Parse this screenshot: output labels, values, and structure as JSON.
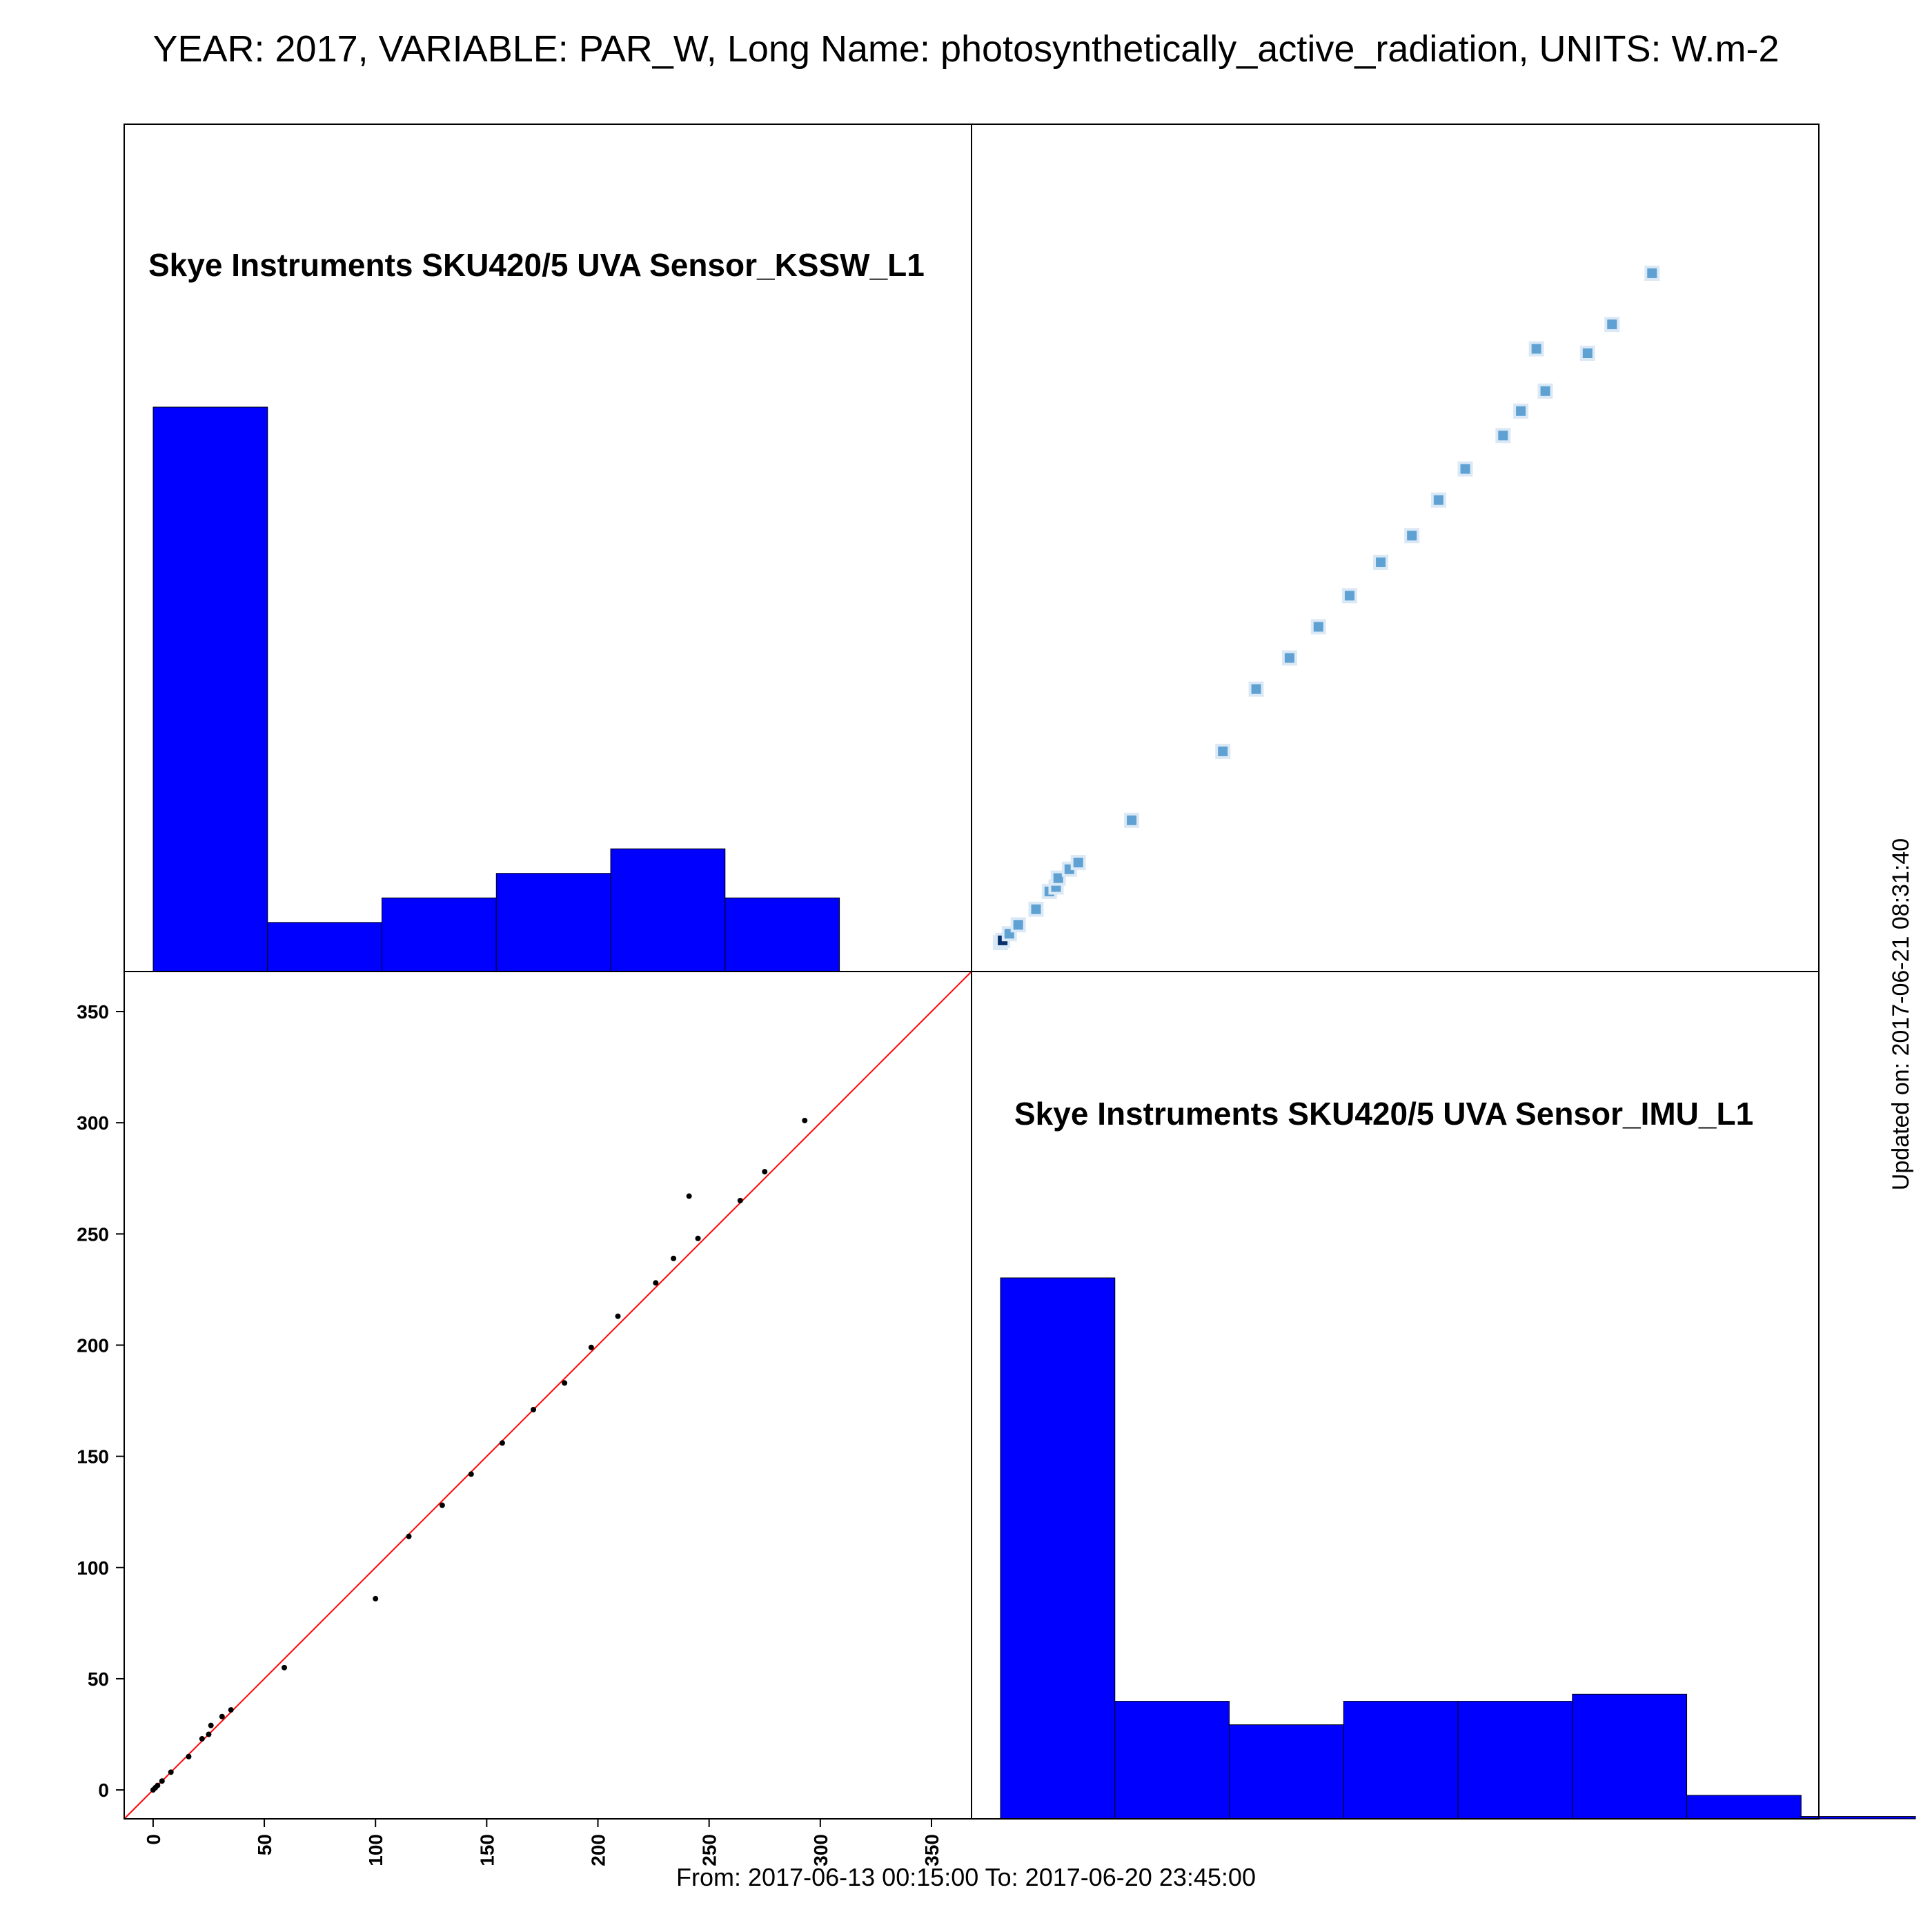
{
  "title": "YEAR: 2017, VARIABLE: PAR_W, Long Name: photosynthetically_active_radiation, UNITS: W.m-2",
  "footer": "From: 2017-06-13 00:15:00 To: 2017-06-20 23:45:00",
  "updated": "Updated on: 2017-06-21 08:31:40",
  "colors": {
    "bars": "#0000ff",
    "identity_line": "#ff0000",
    "points": "#000000",
    "density": "#3f8fc9",
    "density_dark": "#08306b"
  },
  "chart_data": [
    {
      "type": "bar",
      "label": "Skye Instruments SKU420/5 UVA Sensor_KSSW_L1",
      "bin_edges": [
        0,
        50,
        100,
        150,
        200,
        250,
        300
      ],
      "values": [
        230,
        20,
        30,
        40,
        50,
        30
      ]
    },
    {
      "type": "scatter",
      "axis_ticks": [
        0,
        50,
        100,
        150,
        200,
        250,
        300,
        350
      ],
      "xlim": [
        -13,
        368
      ],
      "ylim": [
        -13,
        368
      ],
      "reference_line": "y = x",
      "points": [
        [
          0,
          0
        ],
        [
          1,
          1
        ],
        [
          2,
          2
        ],
        [
          4,
          4
        ],
        [
          8,
          8
        ],
        [
          16,
          15
        ],
        [
          22,
          23
        ],
        [
          25,
          25
        ],
        [
          26,
          29
        ],
        [
          31,
          33
        ],
        [
          35,
          36
        ],
        [
          59,
          55
        ],
        [
          100,
          86
        ],
        [
          115,
          114
        ],
        [
          130,
          128
        ],
        [
          143,
          142
        ],
        [
          157,
          156
        ],
        [
          171,
          171
        ],
        [
          185,
          183
        ],
        [
          197,
          199
        ],
        [
          209,
          213
        ],
        [
          226,
          228
        ],
        [
          234,
          239
        ],
        [
          241,
          267
        ],
        [
          245,
          248
        ],
        [
          264,
          265
        ],
        [
          275,
          278
        ],
        [
          293,
          301
        ]
      ]
    },
    {
      "type": "scatter",
      "panel": "density",
      "points": [
        [
          0,
          0
        ],
        [
          1,
          1
        ],
        [
          4,
          4
        ],
        [
          8,
          8
        ],
        [
          16,
          15
        ],
        [
          22,
          23
        ],
        [
          25,
          25
        ],
        [
          26,
          29
        ],
        [
          31,
          33
        ],
        [
          35,
          36
        ],
        [
          59,
          55
        ],
        [
          100,
          86
        ],
        [
          115,
          114
        ],
        [
          130,
          128
        ],
        [
          143,
          142
        ],
        [
          157,
          156
        ],
        [
          171,
          171
        ],
        [
          185,
          183
        ],
        [
          197,
          199
        ],
        [
          209,
          213
        ],
        [
          226,
          228
        ],
        [
          234,
          239
        ],
        [
          241,
          267
        ],
        [
          245,
          248
        ],
        [
          264,
          265
        ],
        [
          275,
          278
        ],
        [
          293,
          301
        ]
      ]
    },
    {
      "type": "bar",
      "label": "Skye Instruments SKU420/5 UVA Sensor_IMU_L1",
      "bin_edges": [
        0,
        50,
        100,
        150,
        200,
        250,
        300,
        350,
        400
      ],
      "values": [
        230,
        50,
        40,
        50,
        50,
        53,
        10,
        1
      ]
    }
  ]
}
